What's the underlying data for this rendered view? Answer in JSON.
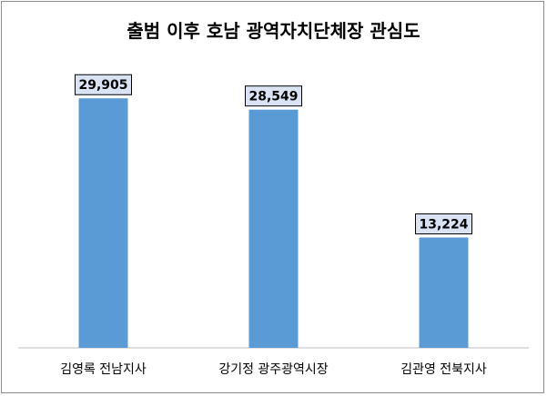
{
  "chart_data": {
    "type": "bar",
    "title": "출범 이후 호남 광역자치단체장 관심도",
    "categories": [
      "김영록 전남지사",
      "강기정 광주광역시장",
      "김관영 전북지사"
    ],
    "values": [
      29905,
      28549,
      13224
    ],
    "data_labels": [
      "29,905",
      "28,549",
      "13,224"
    ],
    "ylim": [
      0,
      32000
    ],
    "bar_color": "#5b9bd5",
    "label_bg": "#dae3f3",
    "label_border": "#000000",
    "grid": false,
    "legend": "none"
  }
}
